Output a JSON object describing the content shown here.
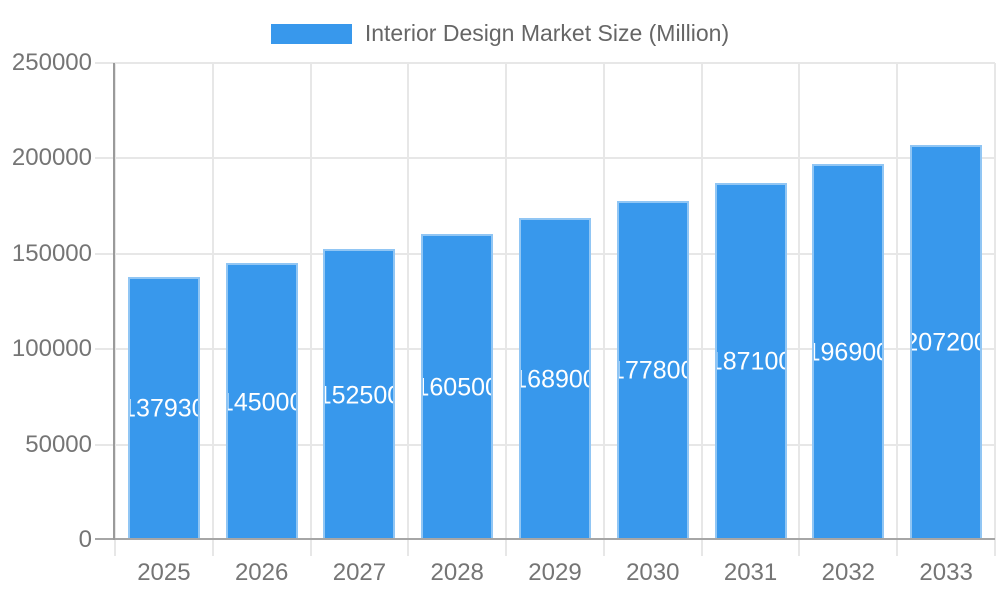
{
  "chart_data": {
    "type": "bar",
    "title": "Interior Design Market Size (Million)",
    "legend": [
      "Interior Design Market Size (Million)"
    ],
    "legend_position": "top",
    "categories": [
      "2025",
      "2026",
      "2027",
      "2028",
      "2029",
      "2030",
      "2031",
      "2032",
      "2033"
    ],
    "values": [
      137930,
      145000,
      152500,
      160500,
      168900,
      177800,
      187100,
      196900,
      207200
    ],
    "xlabel": "",
    "ylabel": "",
    "ylim": [
      0,
      250000
    ],
    "yticks": [
      0,
      50000,
      100000,
      150000,
      200000,
      250000
    ],
    "grid": true,
    "data_labels": "inside-center-white"
  },
  "colors": {
    "bar_fill": "#3898EC",
    "bar_border": "rgba(255,255,255,0.45)",
    "grid_line": "#E7E7E7",
    "axis_line_y": "#9A9A9A",
    "axis_line_x": "#A6A6A6",
    "tick_text": "#757575",
    "legend_text": "#666666",
    "data_label_text": "#FFFFFF",
    "background": "#FFFFFF"
  }
}
